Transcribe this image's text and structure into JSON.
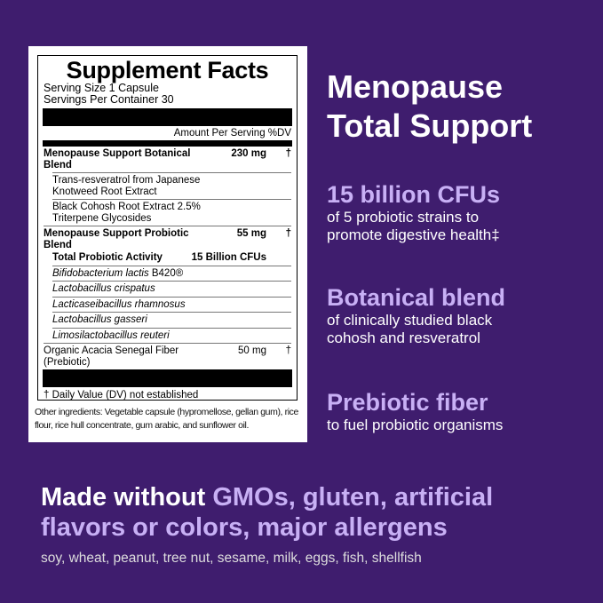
{
  "label": {
    "title": "Supplement Facts",
    "serving_size": "Serving Size  1 Capsule",
    "servings_per_container": "Servings Per Container  30",
    "amount_header": "Amount Per Serving %DV",
    "rows": [
      {
        "name": "Menopause Support Botanical Blend",
        "amount": "230 mg",
        "dv": "†"
      },
      {
        "name": "Trans-resveratrol from Japanese Knotweed Root Extract"
      },
      {
        "name": "Black Cohosh Root Extract 2.5% Triterpene Glycosides"
      },
      {
        "name": "Menopause Support Probiotic Blend",
        "amount": "55 mg",
        "dv": "†"
      },
      {
        "name": "Total Probiotic Activity",
        "amount": "15 Billion CFUs"
      },
      {
        "name": "Bifidobacterium lactis",
        "suffix": "B420®"
      },
      {
        "name": "Lactobacillus crispatus"
      },
      {
        "name": "Lacticaseibacillus rhamnosus"
      },
      {
        "name": "Lactobacillus gasseri"
      },
      {
        "name": "Limosilactobacillus reuteri"
      },
      {
        "name": "Organic Acacia Senegal Fiber (Prebiotic)",
        "amount": "50 mg",
        "dv": "†"
      }
    ],
    "footnote": "† Daily Value (DV) not established",
    "other_ingredients": "Other ingredients: Vegetable capsule (hypromellose, gellan gum), rice flour, rice hull concentrate, gum arabic, and sunflower oil."
  },
  "headline": {
    "line1": "Menopause",
    "line2": "Total Support"
  },
  "features": [
    {
      "title": "15 billion CFUs",
      "line1": "of 5 probiotic strains to",
      "line2": "promote digestive health‡"
    },
    {
      "title": "Botanical blend",
      "line1": "of clinically studied black",
      "line2": "cohosh and resveratrol"
    },
    {
      "title": "Prebiotic fiber",
      "line1": "to fuel probiotic organisms"
    }
  ],
  "bottom": {
    "made_without": "Made without",
    "gmos": "GMOs, gluten, artificial",
    "line2": "flavors or colors, major allergens",
    "allergens": "soy, wheat, peanut, tree nut, sesame, milk, eggs, fish, shellfish"
  },
  "colors": {
    "background": "#3f1d6e",
    "accent": "#c8b0f5"
  }
}
